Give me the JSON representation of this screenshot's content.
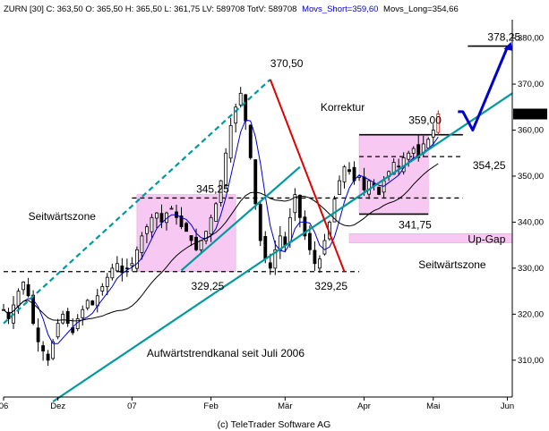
{
  "header": {
    "prefix": "ZURN [30] C: 363,50 O: 365,50 H: 365,50 L: 361,75 LV: 589708 TotV: 589708",
    "movs_short": "Movs_Short=359,60",
    "movs_long": "Movs_Long=354,66"
  },
  "footer": "(c) TeleTrader Software AG",
  "colors": {
    "background": "#ffffff",
    "zone_fill": "#f6c8f2",
    "zone_stroke": "#e8a8e0",
    "candle": "#000000",
    "last_candle": "#e00000",
    "short_ma": "#0000c8",
    "long_ma": "#000000",
    "trend_channel": "#00999f",
    "korrektur_line": "#e00000",
    "projection": "#0000cc",
    "price_box_bg": "#000000",
    "price_box_text": "#ffffff"
  },
  "chart_data": {
    "type": "candlestick",
    "instrument": "ZURN",
    "y_axis": {
      "ticks": [
        "310,00",
        "320,00",
        "330,00",
        "340,00",
        "350,00",
        "360,00",
        "370,00",
        "380,00"
      ],
      "tick_values": [
        310,
        320,
        330,
        340,
        350,
        360,
        370,
        380
      ],
      "range": [
        302,
        384
      ],
      "side": "right"
    },
    "x_axis": {
      "labels": [
        "06",
        "Dez",
        "07",
        "Feb",
        "Mär",
        "Apr",
        "Mai",
        "Jun"
      ],
      "label_index": [
        0,
        11,
        26,
        42,
        57,
        73,
        87,
        102
      ],
      "index_range": [
        0,
        103
      ]
    },
    "last_price_label": "363,50",
    "last_price": 363.5,
    "grid": false,
    "closes": [
      321,
      319,
      322,
      325,
      327,
      324,
      318,
      314,
      312,
      310,
      314,
      318,
      320,
      318,
      316,
      319,
      321,
      323,
      322,
      324,
      326,
      328,
      330,
      331,
      329,
      330,
      331,
      334,
      337,
      339,
      341,
      342,
      340,
      342,
      343,
      341,
      339,
      338,
      336,
      334,
      336,
      338,
      341,
      344,
      349,
      355,
      361,
      365,
      368,
      362,
      354,
      344,
      336,
      332,
      330,
      334,
      337,
      335,
      341,
      346,
      341,
      337,
      334,
      331,
      332,
      336,
      340,
      345,
      349,
      352,
      351,
      349,
      350,
      347,
      349,
      348,
      346,
      349,
      351,
      353,
      352,
      354,
      355,
      356,
      354,
      357,
      358,
      360,
      363.5
    ],
    "volatility": 2.2,
    "series": [
      {
        "name": "Movs_Short",
        "value_last": 359.6,
        "type": "moving_average",
        "window": 5
      },
      {
        "name": "Movs_Long",
        "value_last": 354.66,
        "type": "moving_average",
        "window": 20
      }
    ],
    "horizontal_levels": [
      {
        "value": 329.25,
        "style": "dashed",
        "from_index": 0,
        "to_index": 72
      },
      {
        "value": 345.25,
        "style": "dashed",
        "from_index": 26,
        "to_index": 93
      },
      {
        "value": 354.25,
        "style": "dashed",
        "from_index": 72,
        "to_index": 93
      },
      {
        "value": 359.0,
        "style": "solid",
        "from_index": 72,
        "to_index": 93
      },
      {
        "value": 341.75,
        "style": "solid",
        "from_index": 72,
        "to_index": 86
      },
      {
        "value": 378.25,
        "style": "solid",
        "from_index": 94,
        "to_index": 102
      }
    ],
    "zones": [
      {
        "label": "Seitwärtszone",
        "x_from": 27,
        "x_to": 47,
        "y_from": 329.25,
        "y_to": 346
      },
      {
        "label": "Seitwärtszone",
        "x_from": 72,
        "x_to": 86,
        "y_from": 341.75,
        "y_to": 359
      },
      {
        "label": "Up-Gap",
        "x_from": 70,
        "x_to": 103,
        "y_from": 335.5,
        "y_to": 337.5
      }
    ],
    "trend_lines": [
      {
        "name": "lower-channel",
        "color": "#00999f",
        "style": "solid",
        "x1": 10,
        "y1": 301,
        "x2": 103,
        "y2": 368
      },
      {
        "name": "upper-channel",
        "color": "#00999f",
        "style": "dashed",
        "x1": 0,
        "y1": 318,
        "x2": 54,
        "y2": 371
      },
      {
        "name": "korrektur",
        "color": "#e00000",
        "style": "solid",
        "x1": 54,
        "y1": 371,
        "x2": 69,
        "y2": 329.25
      },
      {
        "name": "channel-mid",
        "color": "#00999f",
        "style": "solid",
        "x1": 36,
        "y1": 329.5,
        "x2": 60,
        "y2": 352
      }
    ],
    "projection": {
      "points": [
        [
          92,
          364
        ],
        [
          93,
          364
        ],
        [
          95,
          360
        ],
        [
          102,
          378
        ]
      ],
      "color": "#0000cc"
    },
    "annotations": [
      {
        "text": "370,50",
        "x": 54,
        "y": 371,
        "label_dx": 0,
        "label_dy": -14
      },
      {
        "text": "Korrektur",
        "x": 58,
        "y": 365,
        "label_dx": 34,
        "label_dy": 4
      },
      {
        "text": "359,00",
        "x": 82,
        "y": 359,
        "label_dx": 0,
        "label_dy": -12
      },
      {
        "text": "378,25",
        "x": 98,
        "y": 378.25,
        "label_dx": 0,
        "label_dy": -6
      },
      {
        "text": "354,25",
        "x": 95,
        "y": 354.25,
        "label_dx": 0,
        "label_dy": 14
      },
      {
        "text": "345,25",
        "x": 39,
        "y": 345.25,
        "label_dx": 0,
        "label_dy": -6
      },
      {
        "text": "341,75",
        "x": 80,
        "y": 341.75,
        "label_dx": 0,
        "label_dy": 16
      },
      {
        "text": "329,25",
        "x": 38,
        "y": 329.25,
        "label_dx": 0,
        "label_dy": 20
      },
      {
        "text": "329,25",
        "x": 63,
        "y": 329.25,
        "label_dx": 0,
        "label_dy": 20
      },
      {
        "text": "Seitwärtszone",
        "x": 5,
        "y": 340.5,
        "label_dx": 0,
        "label_dy": 0
      },
      {
        "text": "Seitwärtszone",
        "x": 84,
        "y": 330,
        "label_dx": 0,
        "label_dy": 0
      },
      {
        "text": "Up-Gap",
        "x": 94,
        "y": 336.3,
        "label_dx": 0,
        "label_dy": 4
      },
      {
        "text": "Aufwärtstrendkanal seit Juli 2006",
        "x": 29,
        "y": 311.5,
        "label_dx": 0,
        "label_dy": 4
      }
    ]
  }
}
